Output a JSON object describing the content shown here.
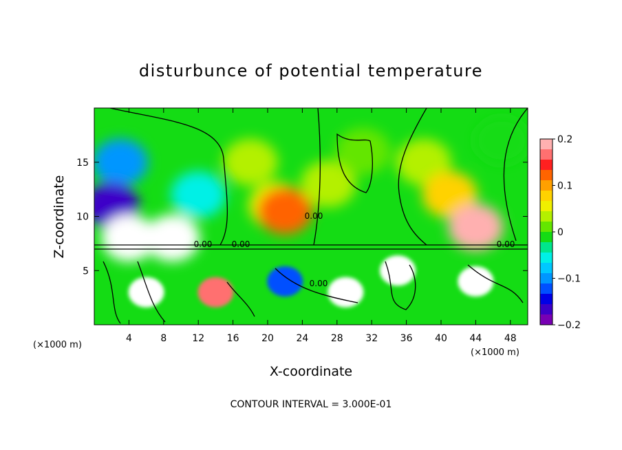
{
  "chart_data": {
    "type": "heatmap",
    "title": "disturbunce of potential temperature",
    "xlabel": "X-coordinate",
    "ylabel": "Z-coordinate",
    "x_unit": "(×1000 m)",
    "z_unit": "(×1000 m)",
    "xlim": [
      0,
      50
    ],
    "ylim": [
      0,
      20
    ],
    "x_ticks": [
      4,
      8,
      12,
      16,
      20,
      24,
      28,
      32,
      36,
      40,
      44,
      48
    ],
    "y_ticks": [
      5,
      10,
      15
    ],
    "colorbar": {
      "range": [
        -0.2,
        0.2
      ],
      "ticks": [
        "0.2",
        "0.1",
        "0",
        "−0.1",
        "−0.2"
      ],
      "colors": [
        "#ffb0b0",
        "#ff7070",
        "#ff2020",
        "#ff6400",
        "#ffa000",
        "#ffd200",
        "#f0f000",
        "#b4f000",
        "#64e600",
        "#14dc14",
        "#00e68c",
        "#00f0e6",
        "#00c8ff",
        "#0096ff",
        "#0050ff",
        "#0000e6",
        "#3c00c8",
        "#7800b4"
      ]
    },
    "contour_interval_note": "CONTOUR INTERVAL = 3.000E-01",
    "contour_labels": [
      "0.00",
      "0.00",
      "0.00",
      "0.00",
      "0.00"
    ],
    "field_regions": [
      {
        "x": 3,
        "z": 15,
        "value": -0.11
      },
      {
        "x": 2,
        "z": 11,
        "value": -0.17
      },
      {
        "x": 4,
        "z": 8,
        "value": -0.22
      },
      {
        "x": 9,
        "z": 8,
        "value": -0.23
      },
      {
        "x": 12,
        "z": 12,
        "value": -0.05
      },
      {
        "x": 18,
        "z": 15,
        "value": 0.03
      },
      {
        "x": 21,
        "z": 11,
        "value": 0.07
      },
      {
        "x": 22,
        "z": 10.5,
        "value": 0.12
      },
      {
        "x": 27,
        "z": 13,
        "value": 0.04
      },
      {
        "x": 31,
        "z": 16,
        "value": 0.01
      },
      {
        "x": 38,
        "z": 15,
        "value": 0.03
      },
      {
        "x": 41,
        "z": 12,
        "value": 0.09
      },
      {
        "x": 44,
        "z": 9,
        "value": 0.2
      },
      {
        "x": 47,
        "z": 17,
        "value": -0.02
      },
      {
        "x": 6,
        "z": 3,
        "value": 0.25
      },
      {
        "x": 14,
        "z": 3,
        "value": 0.18
      },
      {
        "x": 22,
        "z": 4,
        "value": -0.12
      },
      {
        "x": 29,
        "z": 3,
        "value": 0.24
      },
      {
        "x": 35,
        "z": 5,
        "value": -0.25
      },
      {
        "x": 44,
        "z": 4,
        "value": 0.26
      }
    ]
  }
}
